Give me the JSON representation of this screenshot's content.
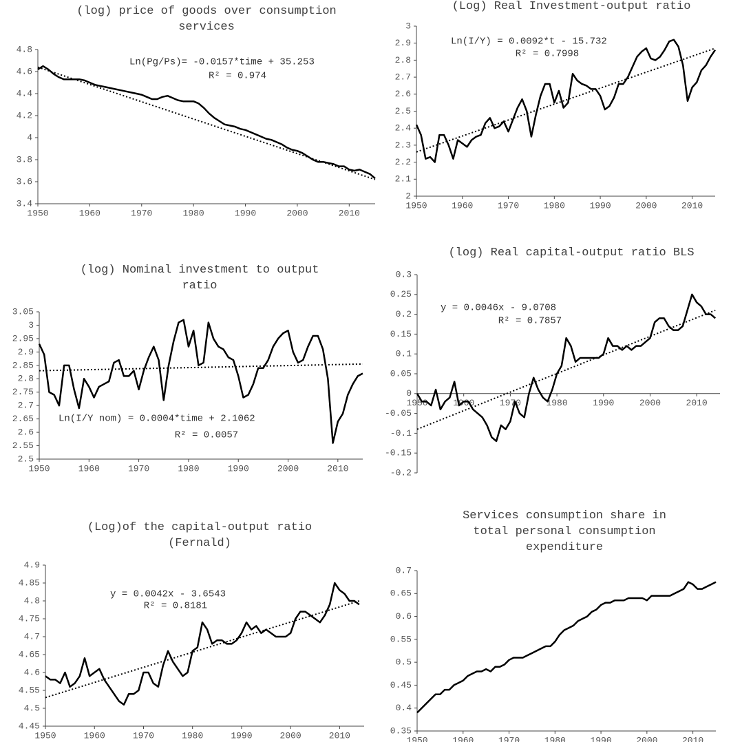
{
  "chart_data": [
    {
      "type": "line",
      "title": "(log) price of goods over consumption services",
      "x": [
        1950,
        1951,
        1952,
        1953,
        1954,
        1955,
        1956,
        1957,
        1958,
        1959,
        1960,
        1961,
        1962,
        1963,
        1964,
        1965,
        1966,
        1967,
        1968,
        1969,
        1970,
        1971,
        1972,
        1973,
        1974,
        1975,
        1976,
        1977,
        1978,
        1979,
        1980,
        1981,
        1982,
        1983,
        1984,
        1985,
        1986,
        1987,
        1988,
        1989,
        1990,
        1991,
        1992,
        1993,
        1994,
        1995,
        1996,
        1997,
        1998,
        1999,
        2000,
        2001,
        2002,
        2003,
        2004,
        2005,
        2006,
        2007,
        2008,
        2009,
        2010,
        2011,
        2012,
        2013,
        2014,
        2015
      ],
      "series": [
        {
          "color": "#000000",
          "values": [
            4.62,
            4.65,
            4.62,
            4.58,
            4.55,
            4.53,
            4.53,
            4.53,
            4.53,
            4.52,
            4.5,
            4.48,
            4.47,
            4.46,
            4.45,
            4.44,
            4.43,
            4.42,
            4.41,
            4.4,
            4.39,
            4.37,
            4.35,
            4.35,
            4.37,
            4.38,
            4.36,
            4.34,
            4.33,
            4.33,
            4.33,
            4.31,
            4.27,
            4.22,
            4.18,
            4.15,
            4.12,
            4.11,
            4.1,
            4.08,
            4.07,
            4.05,
            4.03,
            4.01,
            3.99,
            3.98,
            3.96,
            3.94,
            3.91,
            3.89,
            3.88,
            3.86,
            3.83,
            3.8,
            3.78,
            3.78,
            3.77,
            3.76,
            3.74,
            3.74,
            3.71,
            3.7,
            3.71,
            3.69,
            3.67,
            3.63
          ]
        },
        {
          "color": "#000000",
          "style": "dotted",
          "x": [
            1950,
            2015
          ],
          "values": [
            4.64,
            3.62
          ]
        }
      ],
      "annotations": [
        "Ln(Pg/Ps)= -0.0157*time + 35.253",
        "R² = 0.974"
      ],
      "xlim": [
        1950,
        2015
      ],
      "xticks": [
        1950,
        1960,
        1970,
        1980,
        1990,
        2000,
        2010
      ],
      "ylim": [
        3.4,
        4.8
      ],
      "yticks": [
        3.4,
        3.6,
        3.8,
        4,
        4.2,
        4.4,
        4.6,
        4.8
      ]
    },
    {
      "type": "line",
      "title": "(Log) Real Investment-output ratio",
      "x": [
        1950,
        1951,
        1952,
        1953,
        1954,
        1955,
        1956,
        1957,
        1958,
        1959,
        1960,
        1961,
        1962,
        1963,
        1964,
        1965,
        1966,
        1967,
        1968,
        1969,
        1970,
        1971,
        1972,
        1973,
        1974,
        1975,
        1976,
        1977,
        1978,
        1979,
        1980,
        1981,
        1982,
        1983,
        1984,
        1985,
        1986,
        1987,
        1988,
        1989,
        1990,
        1991,
        1992,
        1993,
        1994,
        1995,
        1996,
        1997,
        1998,
        1999,
        2000,
        2001,
        2002,
        2003,
        2004,
        2005,
        2006,
        2007,
        2008,
        2009,
        2010,
        2011,
        2012,
        2013,
        2014,
        2015
      ],
      "series": [
        {
          "color": "#000000",
          "values": [
            2.42,
            2.36,
            2.22,
            2.23,
            2.2,
            2.36,
            2.36,
            2.3,
            2.22,
            2.33,
            2.31,
            2.29,
            2.33,
            2.35,
            2.36,
            2.43,
            2.46,
            2.4,
            2.41,
            2.44,
            2.38,
            2.45,
            2.52,
            2.57,
            2.5,
            2.35,
            2.48,
            2.59,
            2.66,
            2.66,
            2.55,
            2.62,
            2.52,
            2.55,
            2.72,
            2.68,
            2.66,
            2.65,
            2.63,
            2.63,
            2.59,
            2.51,
            2.53,
            2.58,
            2.66,
            2.66,
            2.7,
            2.76,
            2.82,
            2.85,
            2.87,
            2.81,
            2.8,
            2.82,
            2.86,
            2.91,
            2.92,
            2.88,
            2.77,
            2.56,
            2.64,
            2.67,
            2.74,
            2.77,
            2.82,
            2.86
          ]
        },
        {
          "color": "#000000",
          "style": "dotted",
          "x": [
            1950,
            2015
          ],
          "values": [
            2.26,
            2.87
          ]
        }
      ],
      "annotations": [
        "Ln(I/Y) = 0.0092*t - 15.732",
        "R² = 0.7998"
      ],
      "xlim": [
        1950,
        2015
      ],
      "xticks": [
        1950,
        1960,
        1970,
        1980,
        1990,
        2000,
        2010
      ],
      "ylim": [
        2,
        3
      ],
      "yticks": [
        2,
        2.1,
        2.2,
        2.3,
        2.4,
        2.5,
        2.6,
        2.7,
        2.8,
        2.9,
        3
      ]
    },
    {
      "type": "line",
      "title": "(log) Nominal investment to output ratio",
      "x": [
        1950,
        1951,
        1952,
        1953,
        1954,
        1955,
        1956,
        1957,
        1958,
        1959,
        1960,
        1961,
        1962,
        1963,
        1964,
        1965,
        1966,
        1967,
        1968,
        1969,
        1970,
        1971,
        1972,
        1973,
        1974,
        1975,
        1976,
        1977,
        1978,
        1979,
        1980,
        1981,
        1982,
        1983,
        1984,
        1985,
        1986,
        1987,
        1988,
        1989,
        1990,
        1991,
        1992,
        1993,
        1994,
        1995,
        1996,
        1997,
        1998,
        1999,
        2000,
        2001,
        2002,
        2003,
        2004,
        2005,
        2006,
        2007,
        2008,
        2009,
        2010,
        2011,
        2012,
        2013,
        2014,
        2015
      ],
      "series": [
        {
          "color": "#000000",
          "values": [
            2.93,
            2.89,
            2.75,
            2.74,
            2.7,
            2.85,
            2.85,
            2.76,
            2.69,
            2.8,
            2.77,
            2.73,
            2.77,
            2.78,
            2.79,
            2.86,
            2.87,
            2.81,
            2.81,
            2.83,
            2.76,
            2.83,
            2.88,
            2.92,
            2.87,
            2.72,
            2.85,
            2.94,
            3.01,
            3.02,
            2.92,
            2.98,
            2.85,
            2.86,
            3.01,
            2.95,
            2.92,
            2.91,
            2.88,
            2.87,
            2.81,
            2.73,
            2.74,
            2.78,
            2.84,
            2.84,
            2.87,
            2.92,
            2.95,
            2.97,
            2.98,
            2.9,
            2.86,
            2.87,
            2.92,
            2.96,
            2.96,
            2.91,
            2.8,
            2.56,
            2.64,
            2.67,
            2.74,
            2.78,
            2.81,
            2.82
          ]
        },
        {
          "color": "#000000",
          "style": "dotted",
          "x": [
            1950,
            2015
          ],
          "values": [
            2.83,
            2.855
          ]
        }
      ],
      "annotations": [
        "Ln(I/Y nom) = 0.0004*time + 2.1062",
        "R² = 0.0057"
      ],
      "xlim": [
        1950,
        2015
      ],
      "xticks": [
        1950,
        1960,
        1970,
        1980,
        1990,
        2000,
        2010
      ],
      "ylim": [
        2.5,
        3.05
      ],
      "yticks": [
        2.5,
        2.55,
        2.6,
        2.65,
        2.7,
        2.75,
        2.8,
        2.85,
        2.9,
        2.95,
        3,
        3.05
      ]
    },
    {
      "type": "line",
      "title": "(log) Real capital-output ratio BLS",
      "x": [
        1950,
        1951,
        1952,
        1953,
        1954,
        1955,
        1956,
        1957,
        1958,
        1959,
        1960,
        1961,
        1962,
        1963,
        1964,
        1965,
        1966,
        1967,
        1968,
        1969,
        1970,
        1971,
        1972,
        1973,
        1974,
        1975,
        1976,
        1977,
        1978,
        1979,
        1980,
        1981,
        1982,
        1983,
        1984,
        1985,
        1986,
        1987,
        1988,
        1989,
        1990,
        1991,
        1992,
        1993,
        1994,
        1995,
        1996,
        1997,
        1998,
        1999,
        2000,
        2001,
        2002,
        2003,
        2004,
        2005,
        2006,
        2007,
        2008,
        2009,
        2010,
        2011,
        2012,
        2013,
        2014
      ],
      "series": [
        {
          "color": "#000000",
          "values": [
            0.0,
            -0.02,
            -0.02,
            -0.03,
            0.01,
            -0.04,
            -0.02,
            -0.01,
            0.03,
            -0.03,
            -0.02,
            -0.02,
            -0.04,
            -0.05,
            -0.06,
            -0.08,
            -0.11,
            -0.12,
            -0.08,
            -0.09,
            -0.07,
            -0.02,
            -0.05,
            -0.06,
            0.0,
            0.04,
            0.01,
            -0.01,
            -0.02,
            0.01,
            0.05,
            0.07,
            0.14,
            0.12,
            0.08,
            0.09,
            0.09,
            0.09,
            0.09,
            0.09,
            0.1,
            0.14,
            0.12,
            0.12,
            0.11,
            0.12,
            0.11,
            0.12,
            0.12,
            0.13,
            0.14,
            0.18,
            0.19,
            0.19,
            0.17,
            0.16,
            0.16,
            0.17,
            0.21,
            0.25,
            0.23,
            0.22,
            0.2,
            0.2,
            0.19
          ]
        },
        {
          "color": "#000000",
          "style": "dotted",
          "x": [
            1950,
            2014
          ],
          "values": [
            -0.09,
            0.21
          ]
        }
      ],
      "annotations": [
        "y = 0.0046x - 9.0708",
        "R² = 0.7857"
      ],
      "xlim": [
        1950,
        2015
      ],
      "xticks": [
        1950,
        1960,
        1970,
        1980,
        1990,
        2000,
        2010
      ],
      "ylim": [
        -0.2,
        0.3
      ],
      "yticks": [
        -0.2,
        -0.15,
        -0.1,
        -0.05,
        0,
        0.05,
        0.1,
        0.15,
        0.2,
        0.25,
        0.3
      ]
    },
    {
      "type": "line",
      "title": "(Log)of the capital-output ratio (Fernald)",
      "x": [
        1950,
        1951,
        1952,
        1953,
        1954,
        1955,
        1956,
        1957,
        1958,
        1959,
        1960,
        1961,
        1962,
        1963,
        1964,
        1965,
        1966,
        1967,
        1968,
        1969,
        1970,
        1971,
        1972,
        1973,
        1974,
        1975,
        1976,
        1977,
        1978,
        1979,
        1980,
        1981,
        1982,
        1983,
        1984,
        1985,
        1986,
        1987,
        1988,
        1989,
        1990,
        1991,
        1992,
        1993,
        1994,
        1995,
        1996,
        1997,
        1998,
        1999,
        2000,
        2001,
        2002,
        2003,
        2004,
        2005,
        2006,
        2007,
        2008,
        2009,
        2010,
        2011,
        2012,
        2013,
        2014
      ],
      "series": [
        {
          "color": "#000000",
          "values": [
            4.59,
            4.58,
            4.58,
            4.57,
            4.6,
            4.56,
            4.57,
            4.59,
            4.64,
            4.59,
            4.6,
            4.61,
            4.58,
            4.56,
            4.54,
            4.52,
            4.51,
            4.54,
            4.54,
            4.55,
            4.6,
            4.6,
            4.57,
            4.56,
            4.62,
            4.66,
            4.63,
            4.61,
            4.59,
            4.6,
            4.66,
            4.67,
            4.74,
            4.72,
            4.68,
            4.69,
            4.69,
            4.68,
            4.68,
            4.69,
            4.71,
            4.74,
            4.72,
            4.73,
            4.71,
            4.72,
            4.71,
            4.7,
            4.7,
            4.7,
            4.71,
            4.75,
            4.77,
            4.77,
            4.76,
            4.75,
            4.74,
            4.76,
            4.79,
            4.85,
            4.83,
            4.82,
            4.8,
            4.8,
            4.79
          ]
        },
        {
          "color": "#000000",
          "style": "dotted",
          "x": [
            1950,
            2014
          ],
          "values": [
            4.53,
            4.8
          ]
        }
      ],
      "annotations": [
        "y = 0.0042x - 3.6543",
        "R² = 0.8181"
      ],
      "xlim": [
        1950,
        2015
      ],
      "xticks": [
        1950,
        1960,
        1970,
        1980,
        1990,
        2000,
        2010
      ],
      "ylim": [
        4.45,
        4.9
      ],
      "yticks": [
        4.45,
        4.5,
        4.55,
        4.6,
        4.65,
        4.7,
        4.75,
        4.8,
        4.85,
        4.9
      ]
    },
    {
      "type": "line",
      "title": "Services consumption share in total personal consumption expenditure",
      "x": [
        1950,
        1951,
        1952,
        1953,
        1954,
        1955,
        1956,
        1957,
        1958,
        1959,
        1960,
        1961,
        1962,
        1963,
        1964,
        1965,
        1966,
        1967,
        1968,
        1969,
        1970,
        1971,
        1972,
        1973,
        1974,
        1975,
        1976,
        1977,
        1978,
        1979,
        1980,
        1981,
        1982,
        1983,
        1984,
        1985,
        1986,
        1987,
        1988,
        1989,
        1990,
        1991,
        1992,
        1993,
        1994,
        1995,
        1996,
        1997,
        1998,
        1999,
        2000,
        2001,
        2002,
        2003,
        2004,
        2005,
        2006,
        2007,
        2008,
        2009,
        2010,
        2011,
        2012,
        2013,
        2014,
        2015
      ],
      "series": [
        {
          "color": "#000000",
          "values": [
            0.39,
            0.4,
            0.41,
            0.42,
            0.43,
            0.43,
            0.44,
            0.44,
            0.45,
            0.455,
            0.46,
            0.47,
            0.475,
            0.48,
            0.48,
            0.485,
            0.48,
            0.49,
            0.49,
            0.495,
            0.505,
            0.51,
            0.51,
            0.51,
            0.515,
            0.52,
            0.525,
            0.53,
            0.535,
            0.535,
            0.545,
            0.56,
            0.57,
            0.575,
            0.58,
            0.59,
            0.595,
            0.6,
            0.61,
            0.615,
            0.625,
            0.63,
            0.63,
            0.635,
            0.635,
            0.635,
            0.64,
            0.64,
            0.64,
            0.64,
            0.635,
            0.645,
            0.645,
            0.645,
            0.645,
            0.645,
            0.65,
            0.655,
            0.66,
            0.675,
            0.67,
            0.66,
            0.66,
            0.665,
            0.67,
            0.675
          ]
        }
      ],
      "xlim": [
        1950,
        2015
      ],
      "xticks": [
        1950,
        1960,
        1970,
        1980,
        1990,
        2000,
        2010
      ],
      "ylim": [
        0.35,
        0.7
      ],
      "yticks": [
        0.35,
        0.4,
        0.45,
        0.5,
        0.55,
        0.6,
        0.65,
        0.7
      ]
    }
  ]
}
